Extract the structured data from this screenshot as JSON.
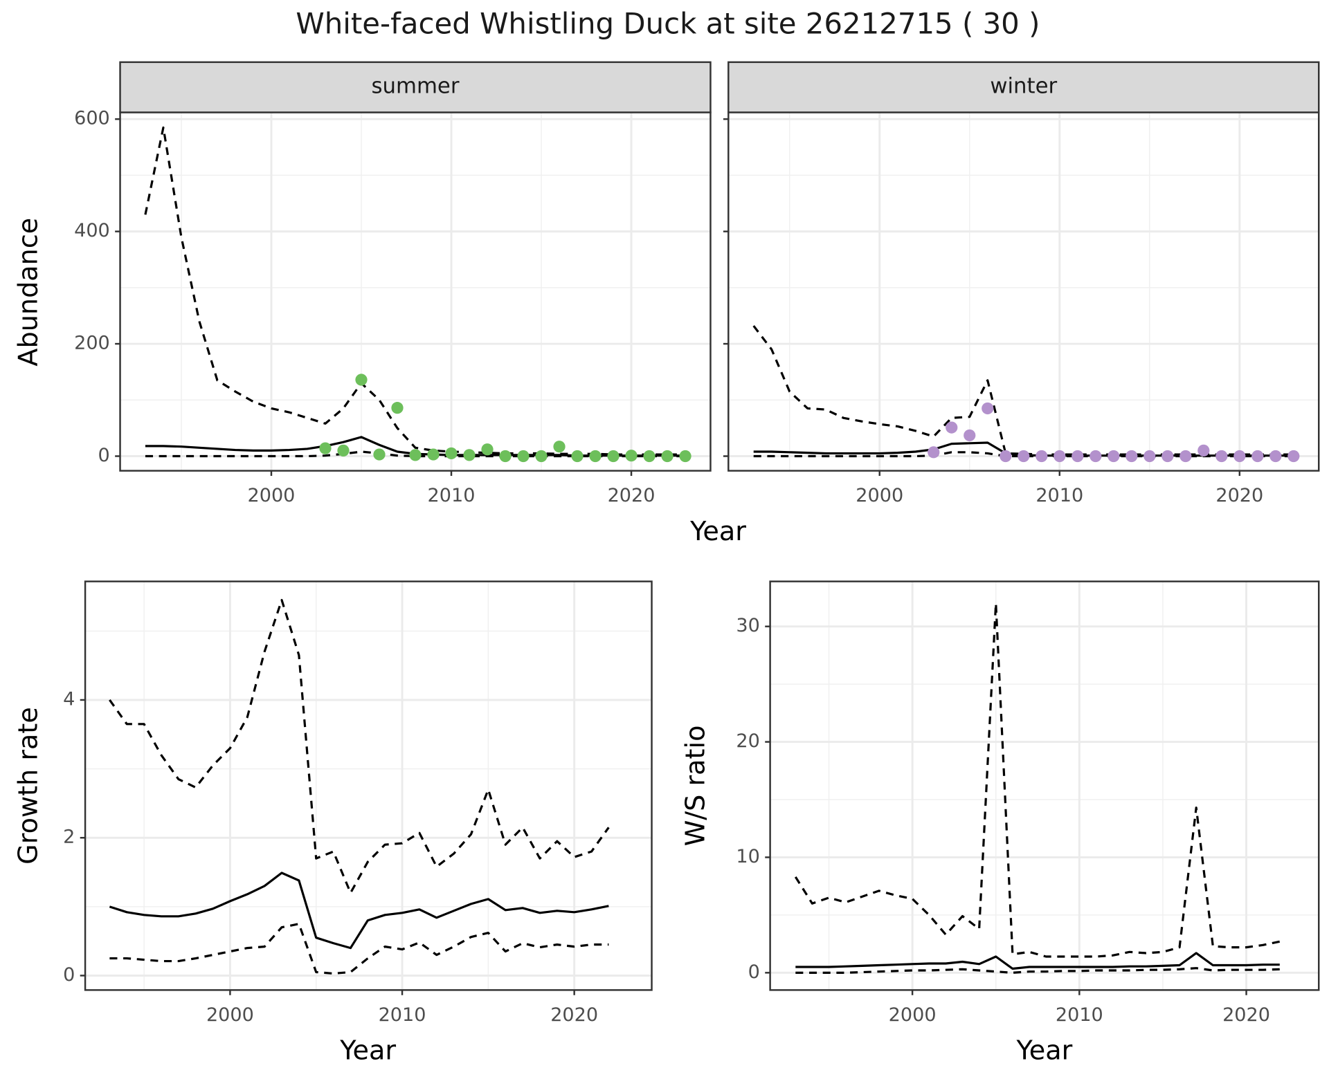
{
  "title": "White-faced Whistling Duck at site 26212715 ( 30 )",
  "chart_data": [
    {
      "type": "line",
      "strip": "summer",
      "xlabel": "Year",
      "ylabel": "Abundance",
      "x": [
        1993,
        1994,
        1995,
        1996,
        1997,
        1998,
        1999,
        2000,
        2001,
        2002,
        2003,
        2004,
        2005,
        2006,
        2007,
        2008,
        2009,
        2010,
        2011,
        2012,
        2013,
        2014,
        2015,
        2016,
        2017,
        2018,
        2019,
        2020,
        2021,
        2022,
        2023
      ],
      "xlim": [
        1991.6,
        2024.4
      ],
      "ylim": [
        -26,
        612
      ],
      "xticks": [
        2000,
        2010,
        2020
      ],
      "yticks": [
        0,
        200,
        400,
        600
      ],
      "grid": true,
      "ytick_labels": true,
      "series": [
        {
          "style": "solid",
          "color": "#000000",
          "values": [
            18,
            18,
            17,
            15,
            13,
            11,
            10,
            10,
            11,
            13,
            18,
            25,
            34,
            20,
            8,
            4,
            3,
            2,
            2,
            2,
            2,
            2,
            2,
            2,
            1,
            1,
            1,
            1,
            1,
            1,
            1
          ]
        },
        {
          "style": "dashed",
          "color": "#000000",
          "values": [
            430,
            585,
            390,
            240,
            135,
            115,
            97,
            85,
            78,
            68,
            58,
            85,
            130,
            100,
            50,
            15,
            10,
            8,
            7,
            6,
            5,
            5,
            5,
            4,
            4,
            4,
            3,
            3,
            3,
            3,
            3
          ]
        },
        {
          "style": "dashed",
          "color": "#000000",
          "values": [
            0,
            0,
            0,
            0,
            0,
            0,
            0,
            0,
            0,
            0,
            1,
            4,
            8,
            5,
            1,
            0,
            0,
            0,
            0,
            0,
            0,
            0,
            0,
            0,
            0,
            0,
            0,
            0,
            0,
            0,
            0
          ]
        },
        {
          "style": "points",
          "color": "#6dbf5b",
          "values": [
            null,
            null,
            null,
            null,
            null,
            null,
            null,
            null,
            null,
            null,
            14,
            10,
            136,
            3,
            86,
            2,
            3,
            5,
            2,
            12,
            0,
            0,
            0,
            17,
            0,
            0,
            0,
            1,
            0,
            0,
            0
          ]
        }
      ]
    },
    {
      "type": "line",
      "strip": "winter",
      "x": [
        1993,
        1994,
        1995,
        1996,
        1997,
        1998,
        1999,
        2000,
        2001,
        2002,
        2003,
        2004,
        2005,
        2006,
        2007,
        2008,
        2009,
        2010,
        2011,
        2012,
        2013,
        2014,
        2015,
        2016,
        2017,
        2018,
        2019,
        2020,
        2021,
        2022,
        2023
      ],
      "xlim": [
        1991.6,
        2024.4
      ],
      "ylim": [
        -26,
        612
      ],
      "xticks": [
        2000,
        2010,
        2020
      ],
      "yticks": [
        0,
        200,
        400,
        600
      ],
      "grid": true,
      "ytick_labels": false,
      "series": [
        {
          "style": "solid",
          "color": "#000000",
          "values": [
            8,
            8,
            7,
            6,
            5,
            5,
            5,
            5,
            6,
            8,
            12,
            22,
            23,
            24,
            5,
            2,
            1,
            1,
            1,
            1,
            1,
            1,
            1,
            1,
            1,
            1,
            1,
            1,
            1,
            1,
            1
          ]
        },
        {
          "style": "dashed",
          "color": "#000000",
          "values": [
            232,
            190,
            115,
            85,
            83,
            68,
            62,
            57,
            53,
            45,
            35,
            68,
            70,
            135,
            5,
            4,
            3,
            3,
            3,
            3,
            3,
            3,
            3,
            3,
            3,
            3,
            3,
            3,
            3,
            3,
            3
          ]
        },
        {
          "style": "dashed",
          "color": "#000000",
          "values": [
            0,
            0,
            0,
            0,
            0,
            0,
            0,
            0,
            0,
            0,
            1,
            7,
            7,
            5,
            0,
            0,
            0,
            0,
            0,
            0,
            0,
            0,
            0,
            0,
            0,
            0,
            0,
            0,
            0,
            0,
            0
          ]
        },
        {
          "style": "points",
          "color": "#b391cc",
          "values": [
            null,
            null,
            null,
            null,
            null,
            null,
            null,
            null,
            null,
            null,
            7,
            51,
            37,
            85,
            0,
            0,
            0,
            0,
            0,
            0,
            0,
            0,
            0,
            0,
            0,
            10,
            0,
            0,
            0,
            0,
            0
          ]
        }
      ]
    },
    {
      "type": "line",
      "xlabel": "Year",
      "ylabel": "Growth rate",
      "x": [
        1993,
        1994,
        1995,
        1996,
        1997,
        1998,
        1999,
        2000,
        2001,
        2002,
        2003,
        2004,
        2005,
        2006,
        2007,
        2008,
        2009,
        2010,
        2011,
        2012,
        2013,
        2014,
        2015,
        2016,
        2017,
        2018,
        2019,
        2020,
        2021,
        2022
      ],
      "xlim": [
        1991.58,
        2024.5
      ],
      "ylim": [
        -0.21,
        5.72
      ],
      "xticks": [
        2000,
        2010,
        2020
      ],
      "yticks": [
        0,
        2,
        4
      ],
      "grid": true,
      "ytick_labels": true,
      "series": [
        {
          "style": "solid",
          "color": "#000000",
          "values": [
            1.0,
            0.92,
            0.88,
            0.86,
            0.86,
            0.9,
            0.97,
            1.08,
            1.18,
            1.3,
            1.49,
            1.38,
            0.55,
            0.47,
            0.4,
            0.8,
            0.88,
            0.91,
            0.96,
            0.84,
            0.94,
            1.04,
            1.11,
            0.95,
            0.98,
            0.91,
            0.94,
            0.92,
            0.96,
            1.01
          ]
        },
        {
          "style": "dashed",
          "color": "#000000",
          "values": [
            4.0,
            3.65,
            3.65,
            3.2,
            2.85,
            2.73,
            3.05,
            3.3,
            3.75,
            4.7,
            5.45,
            4.65,
            1.7,
            1.8,
            1.2,
            1.65,
            1.9,
            1.92,
            2.07,
            1.58,
            1.77,
            2.05,
            2.7,
            1.9,
            2.15,
            1.7,
            1.95,
            1.72,
            1.8,
            2.15
          ]
        },
        {
          "style": "dashed",
          "color": "#000000",
          "values": [
            0.25,
            0.25,
            0.23,
            0.21,
            0.21,
            0.25,
            0.3,
            0.35,
            0.4,
            0.42,
            0.7,
            0.75,
            0.05,
            0.03,
            0.05,
            0.25,
            0.42,
            0.38,
            0.48,
            0.3,
            0.42,
            0.56,
            0.62,
            0.35,
            0.47,
            0.41,
            0.45,
            0.42,
            0.45,
            0.45
          ]
        }
      ]
    },
    {
      "type": "line",
      "xlabel": "Year",
      "ylabel": "W/S ratio",
      "x": [
        1993,
        1994,
        1995,
        1996,
        1997,
        1998,
        1999,
        2000,
        2001,
        2002,
        2003,
        2004,
        2005,
        2006,
        2007,
        2008,
        2009,
        2010,
        2011,
        2012,
        2013,
        2014,
        2015,
        2016,
        2017,
        2018,
        2019,
        2020,
        2021,
        2022
      ],
      "xlim": [
        1991.48,
        2024.34
      ],
      "ylim": [
        -1.5,
        33.9
      ],
      "xticks": [
        2000,
        2010,
        2020
      ],
      "yticks": [
        0,
        10,
        20,
        30
      ],
      "grid": true,
      "ytick_labels": true,
      "series": [
        {
          "style": "solid",
          "color": "#000000",
          "values": [
            0.5,
            0.5,
            0.5,
            0.55,
            0.6,
            0.65,
            0.7,
            0.75,
            0.8,
            0.8,
            0.95,
            0.75,
            1.4,
            0.35,
            0.5,
            0.5,
            0.5,
            0.5,
            0.5,
            0.5,
            0.55,
            0.55,
            0.6,
            0.65,
            1.7,
            0.65,
            0.65,
            0.65,
            0.7,
            0.7
          ]
        },
        {
          "style": "dashed",
          "color": "#000000",
          "values": [
            8.3,
            6.0,
            6.5,
            6.1,
            6.6,
            7.1,
            6.7,
            6.4,
            5.0,
            3.3,
            4.9,
            3.8,
            32,
            1.6,
            1.8,
            1.4,
            1.4,
            1.4,
            1.4,
            1.5,
            1.8,
            1.7,
            1.8,
            2.2,
            14.3,
            2.3,
            2.2,
            2.2,
            2.4,
            2.7
          ]
        },
        {
          "style": "dashed",
          "color": "#000000",
          "values": [
            0,
            0,
            0,
            0,
            0.05,
            0.1,
            0.15,
            0.2,
            0.2,
            0.25,
            0.3,
            0.2,
            0.1,
            0,
            0.1,
            0.1,
            0.15,
            0.15,
            0.2,
            0.2,
            0.2,
            0.25,
            0.25,
            0.3,
            0.4,
            0.2,
            0.25,
            0.25,
            0.25,
            0.3
          ]
        }
      ]
    }
  ]
}
